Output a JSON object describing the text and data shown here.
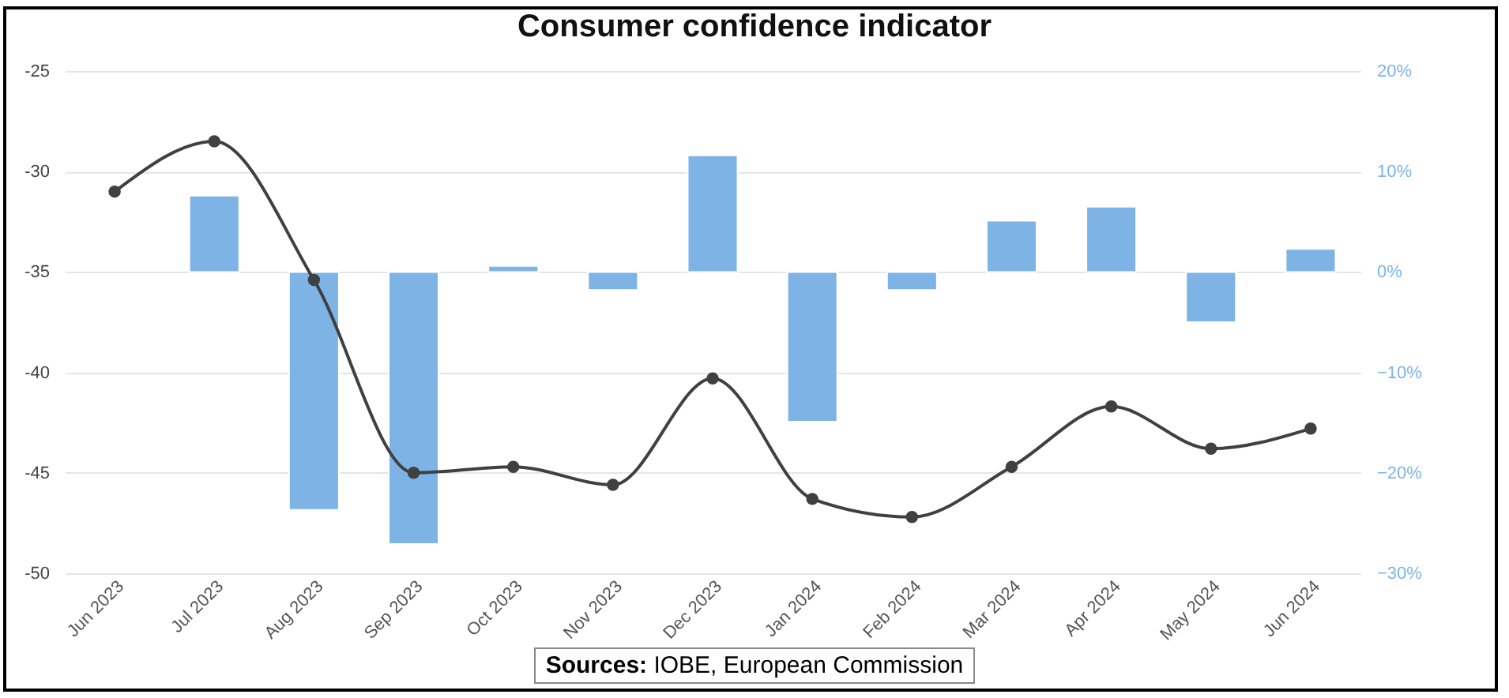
{
  "chart_data": {
    "type": "line",
    "title": "Consumer confidence indicator",
    "categories": [
      "Jun 2023",
      "Jul 2023",
      "Aug 2023",
      "Sep 2023",
      "Oct 2023",
      "Nov 2023",
      "Dec 2023",
      "Jan 2024",
      "Feb 2024",
      "Mar 2024",
      "Apr 2024",
      "May 2024",
      "Jun 2024"
    ],
    "series": [
      {
        "color": "#404040",
        "values": [
          -31.0,
          -28.5,
          -35.4,
          -45.0,
          -44.7,
          -45.6,
          -40.3,
          -46.3,
          -47.2,
          -44.7,
          -41.7,
          -43.8,
          -42.8
        ]
      },
      {
        "type": "bar",
        "axis": "y2",
        "color": "#7eb3e6",
        "values": [
          null,
          7.6,
          -23.7,
          -27.1,
          0.6,
          -1.8,
          11.6,
          -14.9,
          -1.8,
          5.1,
          6.5,
          -5.0,
          2.3
        ]
      }
    ],
    "ylim": [
      -50,
      -25
    ],
    "yticks": [
      -50,
      -45,
      -40,
      -35,
      -30,
      -25
    ],
    "y2lim": [
      -30,
      20
    ],
    "y2ticks": [
      {
        "value": -30,
        "label": "−30%"
      },
      {
        "value": -20,
        "label": "−20%"
      },
      {
        "value": -10,
        "label": "−10%"
      },
      {
        "value": 0,
        "label": "0%"
      },
      {
        "value": 10,
        "label": "10%"
      },
      {
        "value": 20,
        "label": "20%"
      }
    ],
    "grid": "y",
    "marker": "circle",
    "line_style": "solid",
    "annotations": [
      "Sources: IOBE, European Commission"
    ]
  }
}
